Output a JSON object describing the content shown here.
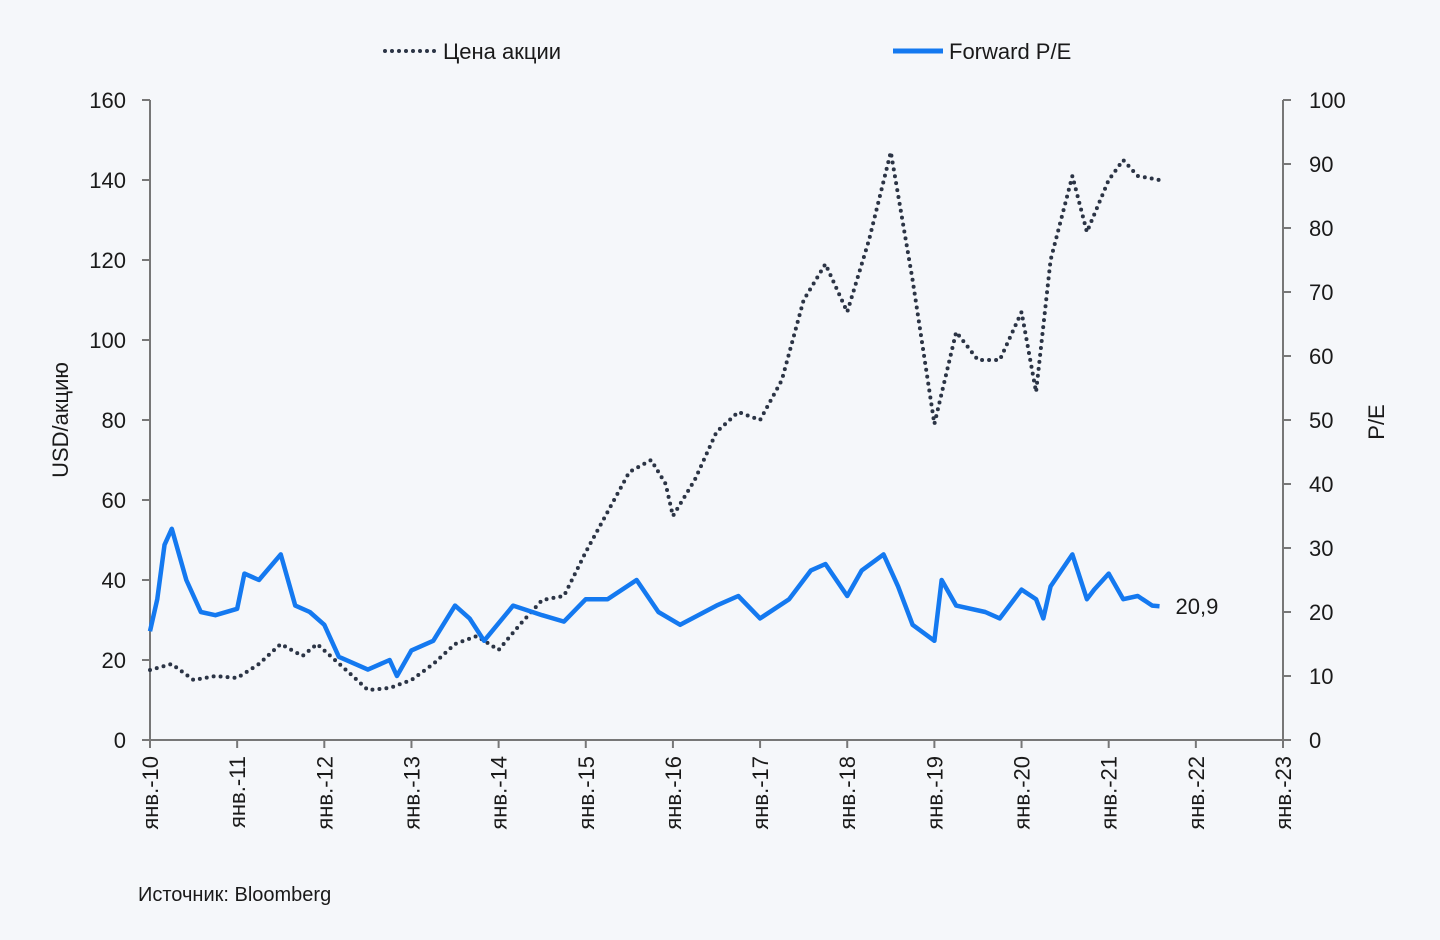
{
  "chart_data": {
    "type": "line",
    "title": "",
    "legend": {
      "placement": "top",
      "entries": [
        "Цена акции",
        "Forward P/E"
      ]
    },
    "x_axis": {
      "ticks": [
        "янв.-10",
        "янв.-11",
        "янв.-12",
        "янв.-13",
        "янв.-14",
        "янв.-15",
        "янв.-16",
        "янв.-17",
        "янв.-18",
        "янв.-19",
        "янв.-20",
        "янв.-21",
        "янв.-22",
        "янв.-23"
      ],
      "range": [
        "2010-01",
        "2023-01"
      ]
    },
    "y_left": {
      "label": "USD/акцию",
      "range": [
        0,
        160
      ],
      "ticks": [
        0,
        20,
        40,
        60,
        80,
        100,
        120,
        140,
        160
      ]
    },
    "y_right": {
      "label": "P/E",
      "range": [
        0,
        100
      ],
      "ticks": [
        0,
        10,
        20,
        30,
        40,
        50,
        60,
        70,
        80,
        90,
        100
      ]
    },
    "grid": false,
    "series": [
      {
        "name": "Цена акции",
        "axis": "left",
        "style": "dotted",
        "color": "#2b3445",
        "points": [
          [
            "2010-01",
            17.5
          ],
          [
            "2010-04",
            19
          ],
          [
            "2010-07",
            15
          ],
          [
            "2010-10",
            16
          ],
          [
            "2011-01",
            15.5
          ],
          [
            "2011-04",
            19
          ],
          [
            "2011-07",
            24
          ],
          [
            "2011-10",
            21
          ],
          [
            "2011-12",
            24
          ],
          [
            "2012-04",
            17.5
          ],
          [
            "2012-07",
            12.5
          ],
          [
            "2012-10",
            13
          ],
          [
            "2013-01",
            15
          ],
          [
            "2013-04",
            19
          ],
          [
            "2013-07",
            24
          ],
          [
            "2013-10",
            26
          ],
          [
            "2014-01",
            22.5
          ],
          [
            "2014-04",
            29
          ],
          [
            "2014-07",
            35
          ],
          [
            "2014-10",
            36
          ],
          [
            "2015-01",
            47
          ],
          [
            "2015-04",
            57
          ],
          [
            "2015-07",
            67
          ],
          [
            "2015-10",
            70
          ],
          [
            "2015-12",
            64
          ],
          [
            "2016-01",
            56
          ],
          [
            "2016-04",
            65
          ],
          [
            "2016-07",
            77
          ],
          [
            "2016-10",
            82
          ],
          [
            "2017-01",
            80
          ],
          [
            "2017-04",
            90
          ],
          [
            "2017-07",
            110
          ],
          [
            "2017-10",
            119
          ],
          [
            "2018-01",
            107
          ],
          [
            "2018-04",
            125
          ],
          [
            "2018-07",
            147
          ],
          [
            "2018-10",
            115
          ],
          [
            "2019-01",
            79
          ],
          [
            "2019-04",
            102
          ],
          [
            "2019-07",
            95
          ],
          [
            "2019-10",
            95
          ],
          [
            "2020-01",
            107
          ],
          [
            "2020-03",
            87
          ],
          [
            "2020-05",
            120
          ],
          [
            "2020-08",
            141
          ],
          [
            "2020-10",
            127
          ],
          [
            "2021-01",
            140
          ],
          [
            "2021-03",
            145
          ],
          [
            "2021-05",
            141
          ],
          [
            "2021-08",
            140
          ]
        ]
      },
      {
        "name": "Forward P/E",
        "axis": "right",
        "style": "solid",
        "color": "#1479f0",
        "end_label": "20,9",
        "points": [
          [
            "2010-01",
            17
          ],
          [
            "2010-02",
            22
          ],
          [
            "2010-03",
            30.5
          ],
          [
            "2010-04",
            33
          ],
          [
            "2010-06",
            25
          ],
          [
            "2010-08",
            20
          ],
          [
            "2010-10",
            19.5
          ],
          [
            "2011-01",
            20.5
          ],
          [
            "2011-02",
            26
          ],
          [
            "2011-04",
            25
          ],
          [
            "2011-07",
            29
          ],
          [
            "2011-09",
            21
          ],
          [
            "2011-11",
            20
          ],
          [
            "2012-01",
            18
          ],
          [
            "2012-03",
            13
          ],
          [
            "2012-07",
            11
          ],
          [
            "2012-10",
            12.5
          ],
          [
            "2012-11",
            10
          ],
          [
            "2013-01",
            14
          ],
          [
            "2013-04",
            15.5
          ],
          [
            "2013-07",
            21
          ],
          [
            "2013-09",
            19
          ],
          [
            "2013-11",
            15.5
          ],
          [
            "2014-03",
            21
          ],
          [
            "2014-07",
            19.5
          ],
          [
            "2014-10",
            18.5
          ],
          [
            "2015-01",
            22
          ],
          [
            "2015-04",
            22
          ],
          [
            "2015-08",
            25
          ],
          [
            "2015-11",
            20
          ],
          [
            "2016-02",
            18
          ],
          [
            "2016-07",
            21
          ],
          [
            "2016-10",
            22.5
          ],
          [
            "2017-01",
            19
          ],
          [
            "2017-05",
            22
          ],
          [
            "2017-08",
            26.5
          ],
          [
            "2017-10",
            27.5
          ],
          [
            "2018-01",
            22.5
          ],
          [
            "2018-03",
            26.5
          ],
          [
            "2018-06",
            29
          ],
          [
            "2018-08",
            24
          ],
          [
            "2018-10",
            18
          ],
          [
            "2019-01",
            15.5
          ],
          [
            "2019-02",
            25
          ],
          [
            "2019-04",
            21
          ],
          [
            "2019-08",
            20
          ],
          [
            "2019-10",
            19
          ],
          [
            "2020-01",
            23.5
          ],
          [
            "2020-03",
            22
          ],
          [
            "2020-04",
            19
          ],
          [
            "2020-05",
            24
          ],
          [
            "2020-08",
            29
          ],
          [
            "2020-10",
            22
          ],
          [
            "2020-11",
            23.5
          ],
          [
            "2021-01",
            26
          ],
          [
            "2021-03",
            22
          ],
          [
            "2021-05",
            22.5
          ],
          [
            "2021-07",
            21
          ],
          [
            "2021-08",
            20.9
          ]
        ]
      }
    ]
  },
  "source": "Источник: Bloomberg"
}
